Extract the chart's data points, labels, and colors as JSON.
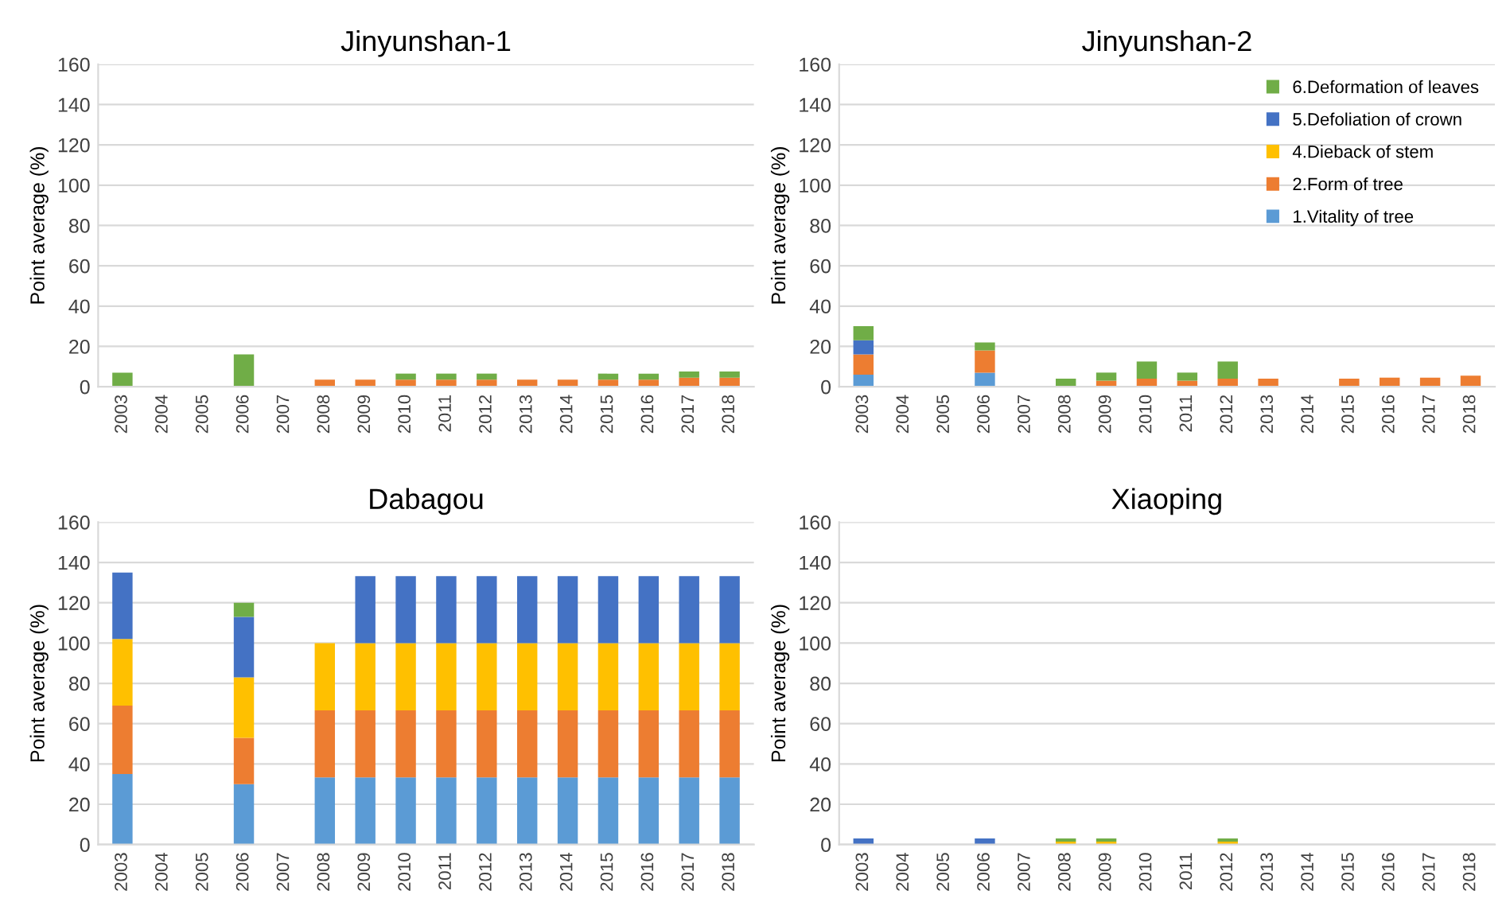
{
  "chart_data": [
    {
      "type": "bar",
      "stacked": true,
      "title": "Jinyunshan-1",
      "ylabel": "Point average (%)",
      "categories": [
        "2003",
        "2004",
        "2005",
        "2006",
        "2007",
        "2008",
        "2009",
        "2010",
        "2011",
        "2012",
        "2013",
        "2014",
        "2015",
        "2016",
        "2017",
        "2018"
      ],
      "ylim": [
        0,
        160
      ],
      "yticks": [
        0,
        20,
        40,
        60,
        80,
        100,
        120,
        140,
        160
      ],
      "grid": "y",
      "series": [
        {
          "color": "#5b9bd5",
          "values": [
            null,
            null,
            null,
            null,
            null,
            null,
            null,
            null,
            null,
            null,
            null,
            null,
            null,
            null,
            null,
            null
          ]
        },
        {
          "color": "#ed7d31",
          "values": [
            null,
            null,
            null,
            null,
            null,
            3.5,
            3.5,
            3.5,
            3.5,
            3.5,
            3.5,
            3.5,
            3.5,
            3.5,
            4.5,
            4.5
          ]
        },
        {
          "color": "#ffc000",
          "values": [
            null,
            null,
            null,
            null,
            null,
            null,
            null,
            null,
            null,
            null,
            null,
            null,
            null,
            null,
            null,
            null
          ]
        },
        {
          "color": "#4472c4",
          "values": [
            null,
            null,
            null,
            null,
            null,
            null,
            null,
            null,
            null,
            null,
            null,
            null,
            null,
            null,
            null,
            null
          ]
        },
        {
          "color": "#70ad47",
          "values": [
            7,
            null,
            null,
            16,
            null,
            null,
            null,
            3,
            3,
            3,
            null,
            null,
            3,
            3,
            3,
            3
          ]
        }
      ]
    },
    {
      "type": "bar",
      "stacked": true,
      "title": "Jinyunshan-2",
      "ylabel": "Point average (%)",
      "categories": [
        "2003",
        "2004",
        "2005",
        "2006",
        "2007",
        "2008",
        "2009",
        "2010",
        "2011",
        "2012",
        "2013",
        "2014",
        "2015",
        "2016",
        "2017",
        "2018"
      ],
      "ylim": [
        0,
        160
      ],
      "yticks": [
        0,
        20,
        40,
        60,
        80,
        100,
        120,
        140,
        160
      ],
      "grid": "y",
      "legend": "top right",
      "series": [
        {
          "name": "1.Vitality of tree",
          "color": "#5b9bd5",
          "values": [
            6,
            null,
            null,
            7,
            null,
            null,
            null,
            null,
            null,
            null,
            null,
            null,
            null,
            null,
            null,
            null
          ]
        },
        {
          "name": "2.Form of tree",
          "color": "#ed7d31",
          "values": [
            10,
            null,
            null,
            11,
            null,
            null,
            3,
            4,
            3,
            4,
            4,
            null,
            4,
            4.5,
            4.5,
            5.5
          ]
        },
        {
          "name": "4.Dieback of stem",
          "color": "#ffc000",
          "values": [
            null,
            null,
            null,
            null,
            null,
            null,
            null,
            null,
            null,
            null,
            null,
            null,
            null,
            null,
            null,
            null
          ]
        },
        {
          "name": "5.Defoliation of crown",
          "color": "#4472c4",
          "values": [
            7,
            null,
            null,
            null,
            null,
            null,
            null,
            null,
            null,
            null,
            null,
            null,
            null,
            null,
            null,
            null
          ]
        },
        {
          "name": "6.Deformation of leaves",
          "color": "#70ad47",
          "values": [
            7,
            null,
            null,
            4,
            null,
            4,
            4,
            8.5,
            4,
            8.5,
            null,
            null,
            null,
            null,
            null,
            null
          ]
        }
      ]
    },
    {
      "type": "bar",
      "stacked": true,
      "title": "Dabagou",
      "ylabel": "Point average (%)",
      "categories": [
        "2003",
        "2004",
        "2005",
        "2006",
        "2007",
        "2008",
        "2009",
        "2010",
        "2011",
        "2012",
        "2013",
        "2014",
        "2015",
        "2016",
        "2017",
        "2018"
      ],
      "ylim": [
        0,
        160
      ],
      "yticks": [
        0,
        20,
        40,
        60,
        80,
        100,
        120,
        140,
        160
      ],
      "grid": "y",
      "series": [
        {
          "color": "#5b9bd5",
          "values": [
            35,
            null,
            null,
            30,
            null,
            33.3,
            33.3,
            33.3,
            33.3,
            33.3,
            33.3,
            33.3,
            33.3,
            33.3,
            33.3,
            33.3
          ]
        },
        {
          "color": "#ed7d31",
          "values": [
            34,
            null,
            null,
            23,
            null,
            33.3,
            33.3,
            33.3,
            33.3,
            33.3,
            33.3,
            33.3,
            33.3,
            33.3,
            33.3,
            33.3
          ]
        },
        {
          "color": "#ffc000",
          "values": [
            33,
            null,
            null,
            30,
            null,
            33.3,
            33.3,
            33.3,
            33.3,
            33.3,
            33.3,
            33.3,
            33.3,
            33.3,
            33.3,
            33.3
          ]
        },
        {
          "color": "#4472c4",
          "values": [
            33,
            null,
            null,
            30,
            null,
            null,
            33.3,
            33.3,
            33.3,
            33.3,
            33.3,
            33.3,
            33.3,
            33.3,
            33.3,
            33.3
          ]
        },
        {
          "color": "#70ad47",
          "values": [
            null,
            null,
            null,
            7,
            null,
            null,
            null,
            null,
            null,
            null,
            null,
            null,
            null,
            null,
            null,
            null
          ]
        }
      ]
    },
    {
      "type": "bar",
      "stacked": true,
      "title": "Xiaoping",
      "ylabel": "Point average (%)",
      "categories": [
        "2003",
        "2004",
        "2005",
        "2006",
        "2007",
        "2008",
        "2009",
        "2010",
        "2011",
        "2012",
        "2013",
        "2014",
        "2015",
        "2016",
        "2017",
        "2018"
      ],
      "ylim": [
        0,
        160
      ],
      "yticks": [
        0,
        20,
        40,
        60,
        80,
        100,
        120,
        140,
        160
      ],
      "grid": "y",
      "series": [
        {
          "color": "#5b9bd5",
          "values": [
            null,
            null,
            null,
            null,
            null,
            null,
            null,
            null,
            null,
            null,
            null,
            null,
            null,
            null,
            null,
            null
          ]
        },
        {
          "color": "#ed7d31",
          "values": [
            null,
            null,
            null,
            null,
            null,
            null,
            null,
            null,
            null,
            null,
            null,
            null,
            null,
            null,
            null,
            null
          ]
        },
        {
          "color": "#ffc000",
          "values": [
            null,
            null,
            null,
            null,
            null,
            1.5,
            1.5,
            null,
            null,
            1.5,
            null,
            null,
            null,
            null,
            null,
            null
          ]
        },
        {
          "color": "#4472c4",
          "values": [
            3,
            null,
            null,
            3,
            null,
            null,
            null,
            null,
            null,
            null,
            null,
            null,
            null,
            null,
            null,
            null
          ]
        },
        {
          "color": "#70ad47",
          "values": [
            null,
            null,
            null,
            null,
            null,
            1.5,
            1.5,
            null,
            null,
            1.5,
            null,
            null,
            null,
            null,
            null,
            null
          ]
        }
      ]
    }
  ]
}
